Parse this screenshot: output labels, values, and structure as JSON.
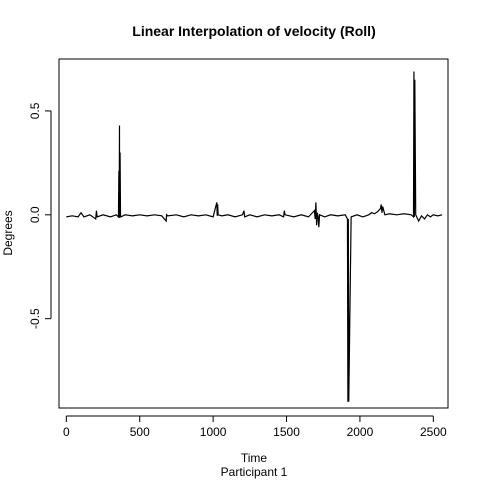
{
  "chart_data": {
    "type": "line",
    "title": "Linear Interpolation of velocity (Roll)",
    "xlabel": "Time",
    "subtitle": "Participant  1",
    "ylabel": "Degrees",
    "xlim": [
      -50,
      2600
    ],
    "ylim": [
      -0.93,
      0.75
    ],
    "x_ticks": [
      0,
      500,
      1000,
      1500,
      2000,
      2500
    ],
    "x_tick_labels": [
      "0",
      "500",
      "1000",
      "1500",
      "2000",
      "2500"
    ],
    "y_ticks": [
      -0.5,
      0.0,
      0.5
    ],
    "y_tick_labels": [
      "-0.5",
      "0.0",
      "0.5"
    ],
    "grid": false,
    "series": [
      {
        "x": [
          0,
          40,
          80,
          100,
          120,
          160,
          200,
          205,
          210,
          250,
          300,
          340,
          355,
          358,
          360,
          362,
          363,
          366,
          369,
          372,
          400,
          450,
          500,
          550,
          600,
          650,
          680,
          683,
          690,
          750,
          800,
          850,
          900,
          950,
          1000,
          1025,
          1028,
          1031,
          1034,
          1060,
          1100,
          1150,
          1200,
          1210,
          1215,
          1250,
          1300,
          1350,
          1400,
          1450,
          1480,
          1485,
          1490,
          1550,
          1600,
          1650,
          1690,
          1695,
          1700,
          1705,
          1710,
          1715,
          1720,
          1725,
          1760,
          1800,
          1850,
          1900,
          1915,
          1918,
          1921,
          1924,
          1940,
          1980,
          2020,
          2060,
          2080,
          2100,
          2120,
          2140,
          2145,
          2150,
          2155,
          2170,
          2200,
          2250,
          2300,
          2350,
          2365,
          2368,
          2371,
          2374,
          2380,
          2400,
          2420,
          2440,
          2460,
          2480,
          2500,
          2530,
          2560
        ],
        "y": [
          -0.01,
          -0.005,
          -0.01,
          0.01,
          -0.01,
          0.0,
          -0.02,
          0.02,
          -0.01,
          0.0,
          -0.01,
          0.0,
          -0.01,
          0.21,
          -0.01,
          0.43,
          -0.015,
          0.3,
          0.0,
          -0.01,
          0.0,
          -0.005,
          0.0,
          -0.005,
          0.0,
          -0.005,
          -0.03,
          0.0,
          -0.005,
          0.0,
          -0.01,
          0.0,
          -0.005,
          0.0,
          -0.01,
          0.06,
          -0.005,
          0.05,
          0.0,
          -0.005,
          0.0,
          -0.01,
          0.0,
          0.02,
          -0.01,
          0.0,
          -0.01,
          0.0,
          -0.005,
          0.0,
          -0.01,
          0.02,
          0.0,
          -0.01,
          0.0,
          -0.01,
          0.02,
          -0.02,
          0.06,
          -0.05,
          0.01,
          -0.01,
          -0.06,
          0.0,
          -0.01,
          0.0,
          -0.005,
          0.0,
          -0.02,
          -0.9,
          -0.02,
          -0.9,
          -0.01,
          0.0,
          -0.01,
          0.0,
          0.01,
          0.005,
          0.015,
          0.03,
          0.05,
          0.01,
          0.04,
          0.0,
          0.005,
          0.0,
          0.005,
          0.0,
          -0.01,
          0.69,
          -0.01,
          0.65,
          0.0,
          -0.03,
          -0.005,
          -0.02,
          0.0,
          -0.01,
          0.0,
          -0.005,
          0.0
        ]
      }
    ]
  }
}
